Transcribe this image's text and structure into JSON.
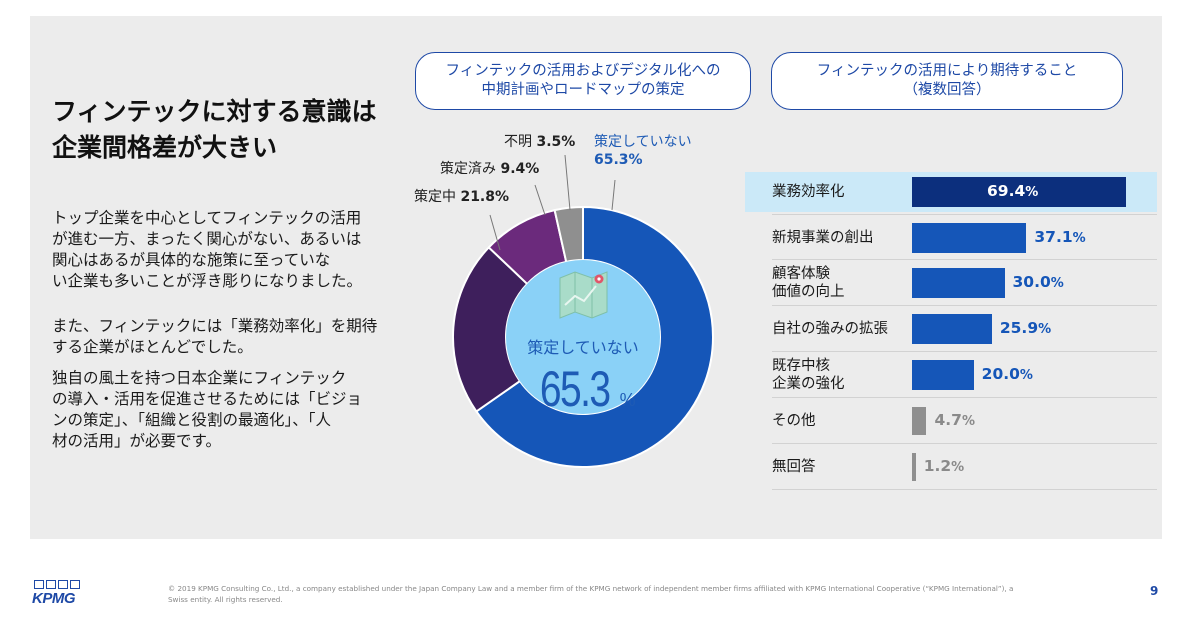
{
  "title_lines": [
    "フィンテックに対する意識は",
    "企業間格差が大きい"
  ],
  "paragraphs": [
    [
      "トップ企業を中心としてフィンテックの活用",
      "が進む一方、まったく関心がない、あるいは",
      "関心はあるが具体的な施策に至っていな",
      "い企業も多いことが浮き彫りになりました。"
    ],
    [
      "また、フィンテックには「業務効率化」を期待",
      "する企業がほとんどでした。"
    ],
    [
      "独自の風土を持つ日本企業にフィンテック",
      "の導入・活用を促進させるためには「ビジョ",
      "ンの策定」、「組織と役割の最適化」、「人",
      "材の活用」が必要です。"
    ]
  ],
  "chart_data": [
    {
      "type": "pie",
      "title_lines": [
        "フィンテックの活用およびデジタル化への",
        "中期計画やロードマップの策定"
      ],
      "categories": [
        "策定していない",
        "策定中",
        "策定済み",
        "不明"
      ],
      "values": [
        65.3,
        21.8,
        9.4,
        3.5
      ],
      "labels": [
        "65.3%",
        "21.8%",
        "9.4%",
        "3.5%"
      ],
      "colors": [
        "#1556b8",
        "#3e1f5c",
        "#6b2a7c",
        "#8f8f8f"
      ],
      "center_label": "策定していない",
      "center_value": "65.3",
      "center_unit": "%"
    },
    {
      "type": "bar",
      "title_lines": [
        "フィンテックの活用により期待すること",
        "（複数回答）"
      ],
      "rows": [
        {
          "label_lines": [
            "業務効率化"
          ],
          "value": 69.4,
          "num": "69.4",
          "unit": "%",
          "color": "#0c2f7d",
          "highlight": true
        },
        {
          "label_lines": [
            "新規事業の創出"
          ],
          "value": 37.1,
          "num": "37.1",
          "unit": "%",
          "color": "#1556b8"
        },
        {
          "label_lines": [
            "顧客体験",
            "価値の向上"
          ],
          "value": 30.0,
          "num": "30.0",
          "unit": "%",
          "color": "#1556b8"
        },
        {
          "label_lines": [
            "自社の強みの拡張"
          ],
          "value": 25.9,
          "num": "25.9",
          "unit": "%",
          "color": "#1556b8"
        },
        {
          "label_lines": [
            "既存中核",
            "企業の強化"
          ],
          "value": 20.0,
          "num": "20.0",
          "unit": "%",
          "color": "#1556b8"
        },
        {
          "label_lines": [
            "その他"
          ],
          "value": 4.7,
          "num": "4.7",
          "unit": "%",
          "color": "#8f8f8f"
        },
        {
          "label_lines": [
            "無回答"
          ],
          "value": 1.2,
          "num": "1.2",
          "unit": "%",
          "color": "#8f8f8f"
        }
      ]
    }
  ],
  "footer": {
    "logo": "KPMG",
    "note": "© 2019 KPMG Consulting Co., Ltd., a company established under the Japan Company Law and a member firm of the KPMG network of independent member firms affiliated with KPMG International Cooperative (“KPMG International”), a Swiss entity. All rights reserved.",
    "page_number": "9"
  }
}
